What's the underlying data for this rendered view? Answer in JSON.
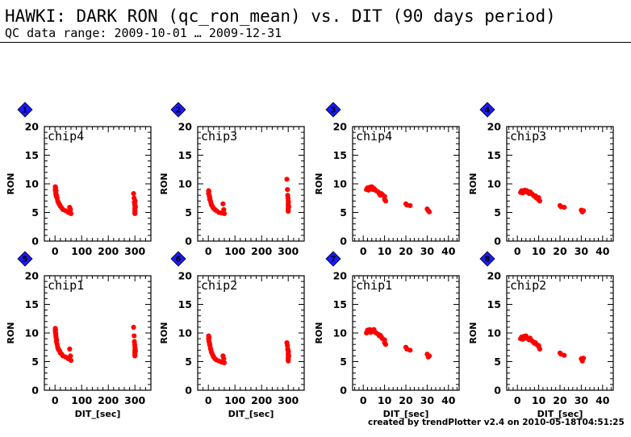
{
  "header": {
    "title": "HAWKI: DARK RON (qc_ron_mean) vs. DIT (90 days period)",
    "subtitle": "QC data range: 2009-10-01 … 2009-12-31"
  },
  "footer": {
    "credit": "created by trendPlotter v2.4 on 2010-05-18T04:51:25"
  },
  "colors": {
    "points": "#ff0000",
    "badge": "#1a1aff",
    "axes": "#000000"
  },
  "chart_data": [
    {
      "type": "scatter",
      "panel_number": "1",
      "label": "chip4",
      "xlabel": "",
      "ylabel": "RON",
      "xlim": [
        -40,
        360
      ],
      "ylim": [
        0,
        20
      ],
      "xticks": [
        0,
        100,
        200,
        300
      ],
      "yticks": [
        0,
        5,
        10,
        15,
        20
      ],
      "x": [
        1,
        1,
        2,
        2,
        3,
        3,
        4,
        5,
        6,
        8,
        10,
        12,
        15,
        18,
        20,
        25,
        30,
        40,
        50,
        55,
        58,
        60,
        295,
        297,
        298,
        299,
        300,
        300,
        300,
        300,
        300,
        300,
        301,
        302
      ],
      "y": [
        9.5,
        9.0,
        8.7,
        9.3,
        8.5,
        8.2,
        8.8,
        7.8,
        8.0,
        7.5,
        7.0,
        6.8,
        6.5,
        6.3,
        6.1,
        5.8,
        5.5,
        5.3,
        5.0,
        5.9,
        5.5,
        4.8,
        8.3,
        7.5,
        6.8,
        6.5,
        6.2,
        5.8,
        5.5,
        5.2,
        5.0,
        4.8,
        7.0,
        6.0
      ]
    },
    {
      "type": "scatter",
      "panel_number": "2",
      "label": "chip3",
      "xlabel": "",
      "ylabel": "RON",
      "xlim": [
        -40,
        360
      ],
      "ylim": [
        0,
        20
      ],
      "xticks": [
        0,
        100,
        200,
        300
      ],
      "yticks": [
        0,
        5,
        10,
        15,
        20
      ],
      "x": [
        1,
        1,
        2,
        3,
        4,
        5,
        6,
        8,
        10,
        12,
        15,
        18,
        20,
        25,
        30,
        40,
        50,
        55,
        58,
        60,
        295,
        297,
        298,
        299,
        300,
        300,
        300,
        300,
        300,
        300,
        301,
        302
      ],
      "y": [
        8.8,
        8.3,
        8.6,
        8.0,
        7.8,
        7.3,
        7.5,
        7.0,
        6.6,
        6.3,
        6.1,
        5.8,
        5.7,
        5.5,
        5.3,
        5.0,
        4.9,
        6.5,
        5.5,
        4.8,
        10.8,
        9.0,
        8.0,
        7.5,
        7.0,
        6.5,
        6.2,
        5.8,
        5.5,
        5.2,
        6.8,
        6.0
      ]
    },
    {
      "type": "scatter",
      "panel_number": "3",
      "label": "chip4",
      "xlabel": "",
      "ylabel": "RON",
      "xlim": [
        -5,
        45
      ],
      "ylim": [
        0,
        20
      ],
      "xticks": [
        0,
        10,
        20,
        30,
        40
      ],
      "yticks": [
        0,
        5,
        10,
        15,
        20
      ],
      "x": [
        1.5,
        2,
        2.5,
        3,
        3.5,
        4,
        4.5,
        5,
        5.5,
        6,
        7,
        7.5,
        8,
        8.5,
        9,
        10,
        10,
        10.5,
        20,
        20.5,
        22,
        30,
        30.5,
        31
      ],
      "y": [
        9.0,
        9.3,
        8.9,
        9.4,
        9.1,
        9.5,
        9.0,
        9.2,
        9.0,
        8.8,
        8.6,
        8.3,
        8.0,
        8.3,
        8.1,
        7.8,
        7.3,
        7.0,
        6.5,
        6.3,
        6.2,
        5.6,
        5.3,
        5.1
      ]
    },
    {
      "type": "scatter",
      "panel_number": "4",
      "label": "chip3",
      "xlabel": "",
      "ylabel": "RON",
      "xlim": [
        -5,
        45
      ],
      "ylim": [
        0,
        20
      ],
      "xticks": [
        0,
        10,
        20,
        30,
        40
      ],
      "yticks": [
        0,
        5,
        10,
        15,
        20
      ],
      "x": [
        1.5,
        2,
        2.5,
        3,
        3.5,
        4,
        4.5,
        5,
        5.5,
        6,
        7,
        7.5,
        8,
        8.5,
        9,
        10,
        10,
        10.5,
        20,
        20.5,
        22,
        30,
        30.5,
        31
      ],
      "y": [
        8.5,
        8.8,
        8.4,
        8.7,
        8.9,
        8.6,
        8.8,
        8.5,
        8.3,
        8.6,
        8.2,
        8.0,
        7.8,
        7.9,
        7.5,
        7.2,
        7.6,
        7.0,
        6.2,
        6.0,
        5.9,
        5.4,
        5.1,
        5.3
      ]
    },
    {
      "type": "scatter",
      "panel_number": "5",
      "label": "chip1",
      "xlabel": "DIT_[sec]",
      "ylabel": "RON",
      "xlim": [
        -40,
        360
      ],
      "ylim": [
        0,
        20
      ],
      "xticks": [
        0,
        100,
        200,
        300
      ],
      "yticks": [
        0,
        5,
        10,
        15,
        20
      ],
      "x": [
        1,
        1,
        2,
        2,
        3,
        3,
        4,
        5,
        6,
        8,
        10,
        12,
        15,
        18,
        20,
        25,
        30,
        40,
        50,
        55,
        58,
        60,
        295,
        297,
        298,
        299,
        300,
        300,
        300,
        300,
        300,
        300,
        301,
        302
      ],
      "y": [
        10.8,
        10.3,
        10.0,
        10.5,
        9.5,
        9.8,
        9.2,
        8.5,
        8.8,
        8.0,
        7.5,
        7.2,
        7.0,
        6.8,
        6.5,
        6.3,
        6.0,
        5.8,
        5.5,
        7.2,
        6.0,
        5.2,
        11.0,
        9.5,
        8.5,
        8.0,
        7.5,
        7.0,
        6.8,
        6.5,
        6.2,
        6.0,
        7.2,
        6.8
      ]
    },
    {
      "type": "scatter",
      "panel_number": "6",
      "label": "chip2",
      "xlabel": "DIT_[sec]",
      "ylabel": "RON",
      "xlim": [
        -40,
        360
      ],
      "ylim": [
        0,
        20
      ],
      "xticks": [
        0,
        100,
        200,
        300
      ],
      "yticks": [
        0,
        5,
        10,
        15,
        20
      ],
      "x": [
        1,
        1,
        2,
        3,
        4,
        5,
        6,
        8,
        10,
        12,
        15,
        18,
        20,
        25,
        30,
        40,
        50,
        55,
        58,
        60,
        295,
        297,
        298,
        299,
        300,
        300,
        300,
        300,
        300,
        300,
        301,
        302
      ],
      "y": [
        9.5,
        9.0,
        8.6,
        9.2,
        8.3,
        8.0,
        7.8,
        7.3,
        7.0,
        6.6,
        6.3,
        6.0,
        5.8,
        5.5,
        5.3,
        5.1,
        4.9,
        6.0,
        5.5,
        4.8,
        8.3,
        7.8,
        7.2,
        7.0,
        6.5,
        6.2,
        5.8,
        5.5,
        5.3,
        5.1,
        6.8,
        6.0
      ]
    },
    {
      "type": "scatter",
      "panel_number": "7",
      "label": "chip1",
      "xlabel": "DIT_[sec]",
      "ylabel": "RON",
      "xlim": [
        -5,
        45
      ],
      "ylim": [
        0,
        20
      ],
      "xticks": [
        0,
        10,
        20,
        30,
        40
      ],
      "yticks": [
        0,
        5,
        10,
        15,
        20
      ],
      "x": [
        1.5,
        2,
        2.5,
        3,
        3.5,
        4,
        4.5,
        5,
        5.5,
        6,
        7,
        7.5,
        8,
        8.5,
        9,
        10,
        10,
        10.5,
        20,
        20.5,
        22,
        30,
        30.5,
        31
      ],
      "y": [
        10.0,
        10.5,
        10.2,
        10.6,
        10.1,
        10.5,
        10.3,
        10.6,
        10.2,
        10.0,
        9.8,
        9.5,
        9.6,
        9.3,
        9.0,
        8.8,
        8.3,
        8.0,
        7.5,
        7.2,
        7.0,
        6.3,
        5.8,
        6.0
      ]
    },
    {
      "type": "scatter",
      "panel_number": "8",
      "label": "chip2",
      "xlabel": "DIT_[sec]",
      "ylabel": "RON",
      "xlim": [
        -5,
        45
      ],
      "ylim": [
        0,
        20
      ],
      "xticks": [
        0,
        10,
        20,
        30,
        40
      ],
      "yticks": [
        0,
        5,
        10,
        15,
        20
      ],
      "x": [
        1.5,
        2,
        2.5,
        3,
        3.5,
        4,
        4.5,
        5,
        5.5,
        6,
        7,
        7.5,
        8,
        8.5,
        9,
        10,
        10,
        10.5,
        20,
        20.5,
        22,
        30,
        30.5,
        31
      ],
      "y": [
        9.0,
        9.3,
        8.9,
        9.4,
        9.1,
        9.5,
        9.2,
        9.0,
        8.8,
        9.1,
        8.6,
        8.4,
        8.2,
        8.3,
        8.0,
        7.6,
        7.8,
        7.2,
        6.5,
        6.3,
        6.1,
        5.5,
        5.1,
        5.6
      ]
    }
  ]
}
